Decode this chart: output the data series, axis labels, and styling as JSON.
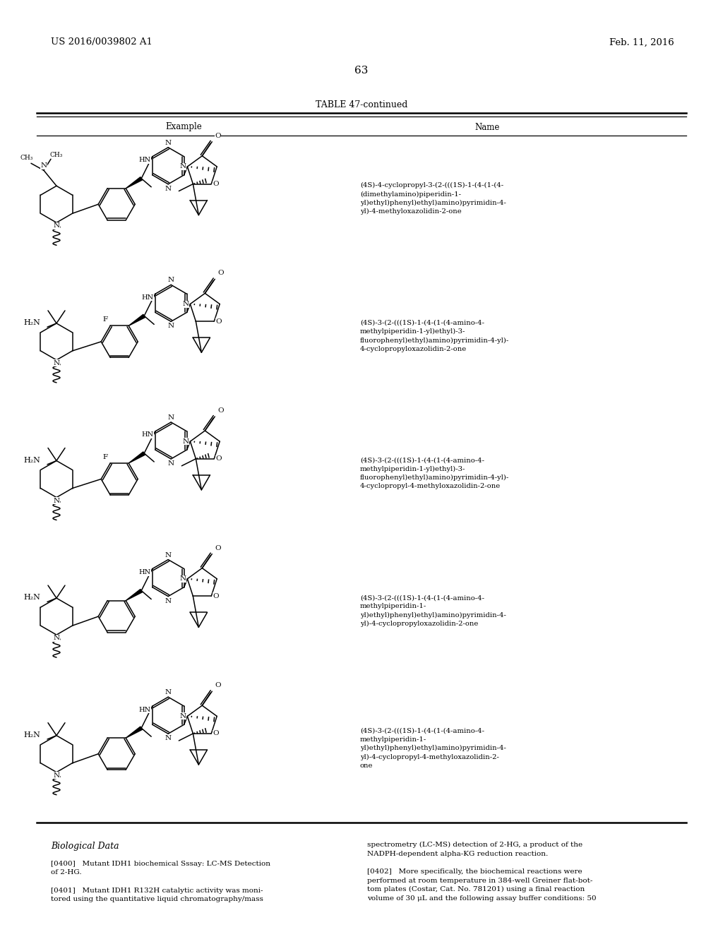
{
  "bg_color": "#ffffff",
  "header_left": "US 2016/0039802 A1",
  "header_right": "Feb. 11, 2016",
  "page_number": "63",
  "table_title": "TABLE 47-continued",
  "col1_header": "Example",
  "col2_header": "Name",
  "names": [
    "(4S)-4-cyclopropyl-3-(2-(((1S)-1-(4-(1-(4-\n(dimethylamino)piperidin-1-\nyl)ethyl)phenyl)ethyl)amino)pyrimidin-4-\nyl)-4-methyloxazolidin-2-one",
    "(4S)-3-(2-(((1S)-1-(4-(1-(4-amino-4-\nmethylpiperidin-1-yl)ethyl)-3-\nfluorophenyl)ethyl)amino)pyrimidin-4-yl)-\n4-cyclopropyloxazolidin-2-one",
    "(4S)-3-(2-(((1S)-1-(4-(1-(4-amino-4-\nmethylpiperidin-1-yl)ethyl)-3-\nfluorophenyl)ethyl)amino)pyrimidin-4-yl)-\n4-cyclopropyl-4-methyloxazolidin-2-one",
    "(4S)-3-(2-(((1S)-1-(4-(1-(4-amino-4-\nmethylpiperidin-1-\nyl)ethyl)phenyl)ethyl)amino)pyrimidin-4-\nyl)-4-cyclopropyloxazolidin-2-one",
    "(4S)-3-(2-(((1S)-1-(4-(1-(4-amino-4-\nmethylpiperidin-1-\nyl)ethyl)phenyl)ethyl)amino)pyrimidin-4-\nyl)-4-cyclopropyl-4-methyloxazolidin-2-\none"
  ],
  "bio_title": "Biological Data",
  "bio_text_left": [
    "[0400]   Mutant IDH1 biochemical Sssay: LC-MS Detection\nof 2-HG.",
    "[0401]   Mutant IDH1 R132H catalytic activity was moni-\ntored using the quantitative liquid chromatography/mass"
  ],
  "bio_text_right": [
    "spectrometry (LC-MS) detection of 2-HG, a product of the\nNADPH-dependent alpha-KG reduction reaction.",
    "[0402]   More specifically, the biochemical reactions were\nperformed at room temperature in 384-well Greiner flat-bot-\ntom plates (Costar, Cat. No. 781201) using a final reaction\nvolume of 30 μL and the following assay buffer conditions: 50"
  ]
}
